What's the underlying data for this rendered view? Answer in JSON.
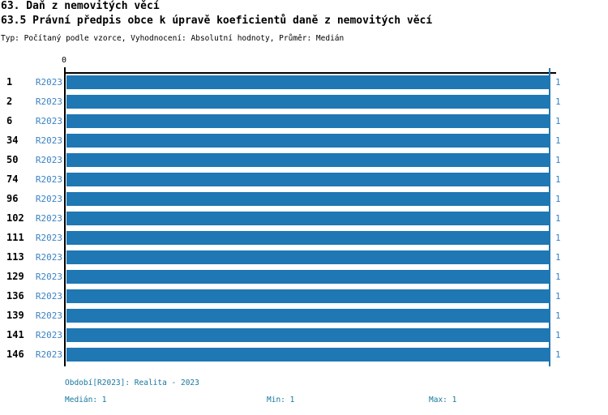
{
  "header": {
    "title": "63. Daň z nemovitých věcí",
    "subtitle": "63.5 Právní předpis obce k úpravě koeficientů daně z nemovitých věcí",
    "meta": "Typ: Počítaný podle vzorce, Vyhodnocení: Absolutní hodnoty, Průměr: Medián"
  },
  "chart_data": {
    "type": "bar",
    "orientation": "horizontal",
    "title": "63.5 Právní předpis obce k úpravě koeficientů daně z nemovitých věcí",
    "series_name": "R2023",
    "categories": [
      "1",
      "2",
      "6",
      "34",
      "50",
      "74",
      "96",
      "102",
      "111",
      "113",
      "129",
      "136",
      "139",
      "141",
      "146"
    ],
    "values": [
      1,
      1,
      1,
      1,
      1,
      1,
      1,
      1,
      1,
      1,
      1,
      1,
      1,
      1,
      1
    ],
    "xlim": [
      0,
      1
    ],
    "x_axis_origin_label": "0",
    "grid": false,
    "legend": "none",
    "reference_line_x": 1
  },
  "colors": {
    "bar": "#1f77b4",
    "reference_line": "#1f77b4",
    "series_label": "#3a82c4",
    "value_label": "#3a82c4",
    "footer_text": "#17779f",
    "axis": "#000000"
  },
  "footer": {
    "period": "Období[R2023]: Realita - 2023",
    "median": "Medián: 1",
    "min": "Min: 1",
    "max": "Max: 1"
  }
}
